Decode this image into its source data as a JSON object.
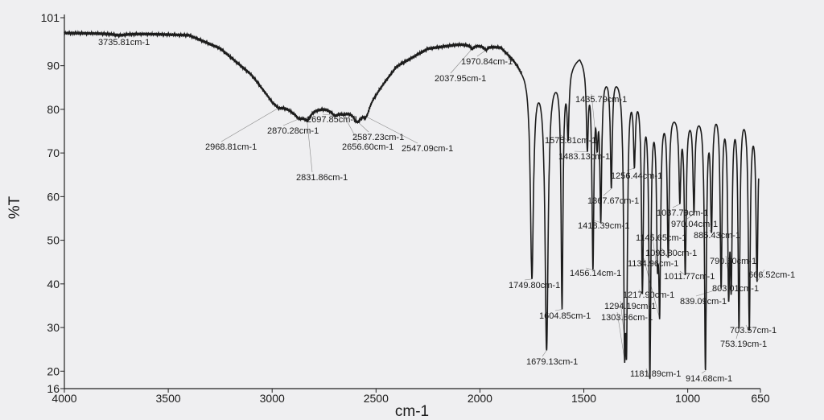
{
  "chart_data": {
    "type": "line",
    "title": "",
    "xlabel": "cm-1",
    "ylabel": "%T",
    "xlim": [
      4000,
      650
    ],
    "ylim": [
      16,
      101
    ],
    "x_reversed": true,
    "grid": false,
    "x_ticks": [
      "4000",
      "3500",
      "3000",
      "2500",
      "2000",
      "1500",
      "1000",
      "650"
    ],
    "y_ticks": [
      "16",
      "20",
      "30",
      "40",
      "50",
      "60",
      "70",
      "80",
      "90",
      "101"
    ],
    "line_color": "#1c1c1c",
    "baseline": [
      [
        4000,
        97.5
      ],
      [
        3600,
        97.3
      ],
      [
        3400,
        97.0
      ],
      [
        3250,
        94
      ],
      [
        3100,
        88
      ],
      [
        3000,
        82
      ],
      [
        2900,
        80
      ],
      [
        2750,
        80.5
      ],
      [
        2600,
        80
      ],
      [
        2500,
        84
      ],
      [
        2400,
        90
      ],
      [
        2250,
        94
      ],
      [
        2100,
        95
      ],
      [
        1900,
        94.5
      ],
      [
        1840,
        92
      ],
      [
        1800,
        90
      ],
      [
        1700,
        88
      ],
      [
        1600,
        89
      ],
      [
        1520,
        93
      ],
      [
        1450,
        89
      ],
      [
        1350,
        89
      ],
      [
        1250,
        86
      ],
      [
        1150,
        82
      ],
      [
        1050,
        80
      ],
      [
        950,
        80
      ],
      [
        850,
        82
      ],
      [
        750,
        82
      ],
      [
        660,
        78
      ],
      [
        650,
        70
      ]
    ],
    "peaks": [
      {
        "wavenumber": 3735.81,
        "label": "3735.81cm-1",
        "t": 97.0
      },
      {
        "wavenumber": 2968.81,
        "label": "2968.81cm-1",
        "t": 80.5
      },
      {
        "wavenumber": 2870.28,
        "label": "2870.28cm-1",
        "t": 78.5
      },
      {
        "wavenumber": 2831.86,
        "label": "2831.86cm-1",
        "t": 78.0
      },
      {
        "wavenumber": 2697.85,
        "label": "2697.85cm-1",
        "t": 79.0
      },
      {
        "wavenumber": 2656.6,
        "label": "2656.60cm-1",
        "t": 79.5
      },
      {
        "wavenumber": 2587.23,
        "label": "2587.23cm-1",
        "t": 78.0
      },
      {
        "wavenumber": 2547.09,
        "label": "2547.09cm-1",
        "t": 79.0
      },
      {
        "wavenumber": 2037.95,
        "label": "2037.95cm-1",
        "t": 94.0
      },
      {
        "wavenumber": 1970.84,
        "label": "1970.84cm-1",
        "t": 93.8
      },
      {
        "wavenumber": 1749.8,
        "label": "1749.80cm-1",
        "t": 42.3
      },
      {
        "wavenumber": 1679.13,
        "label": "1679.13cm-1",
        "t": 26.0
      },
      {
        "wavenumber": 1604.85,
        "label": "1604.85cm-1",
        "t": 36.0
      },
      {
        "wavenumber": 1575.81,
        "label": "1575.81cm-1",
        "t": 75.5
      },
      {
        "wavenumber": 1483.13,
        "label": "1483.13cm-1",
        "t": 73.0
      },
      {
        "wavenumber": 1456.14,
        "label": "1456.14cm-1",
        "t": 46.0
      },
      {
        "wavenumber": 1435.79,
        "label": "1435.79cm-1",
        "t": 77.0
      },
      {
        "wavenumber": 1418.39,
        "label": "1418.39cm-1",
        "t": 57.0
      },
      {
        "wavenumber": 1367.67,
        "label": "1367.67cm-1",
        "t": 63.5
      },
      {
        "wavenumber": 1303.86,
        "label": "1303.86cm-1",
        "t": 36.0
      },
      {
        "wavenumber": 1294.19,
        "label": "1294.19cm-1",
        "t": 37.0
      },
      {
        "wavenumber": 1256.44,
        "label": "1256.44cm-1",
        "t": 70.0
      },
      {
        "wavenumber": 1217.9,
        "label": "1217.90cm-1",
        "t": 40.5
      },
      {
        "wavenumber": 1181.89,
        "label": "1181.89cm-1",
        "t": 21.0
      },
      {
        "wavenumber": 1145.65,
        "label": "1145.65cm-1",
        "t": 54.0
      },
      {
        "wavenumber": 1134.96,
        "label": "1134.96cm-1",
        "t": 40.0
      },
      {
        "wavenumber": 1093.8,
        "label": "1093.80cm-1",
        "t": 48.0
      },
      {
        "wavenumber": 1037.79,
        "label": "1037.79cm-1",
        "t": 61.0
      },
      {
        "wavenumber": 1011.77,
        "label": "1011.77cm-1",
        "t": 44.0
      },
      {
        "wavenumber": 970.04,
        "label": "970.04cm-1",
        "t": 58.0
      },
      {
        "wavenumber": 914.68,
        "label": "914.68cm-1",
        "t": 22.0
      },
      {
        "wavenumber": 885.43,
        "label": "885.43cm-1",
        "t": 55.0
      },
      {
        "wavenumber": 839.09,
        "label": "839.09cm-1",
        "t": 41.5
      },
      {
        "wavenumber": 803.01,
        "label": "803.01cm-1",
        "t": 44.0
      },
      {
        "wavenumber": 790.6,
        "label": "790.60cm-1",
        "t": 46.0
      },
      {
        "wavenumber": 753.19,
        "label": "753.19cm-1",
        "t": 32.0
      },
      {
        "wavenumber": 703.57,
        "label": "703.57cm-1",
        "t": 31.0
      },
      {
        "wavenumber": 666.52,
        "label": "666.52cm-1",
        "t": 42.0
      }
    ]
  }
}
